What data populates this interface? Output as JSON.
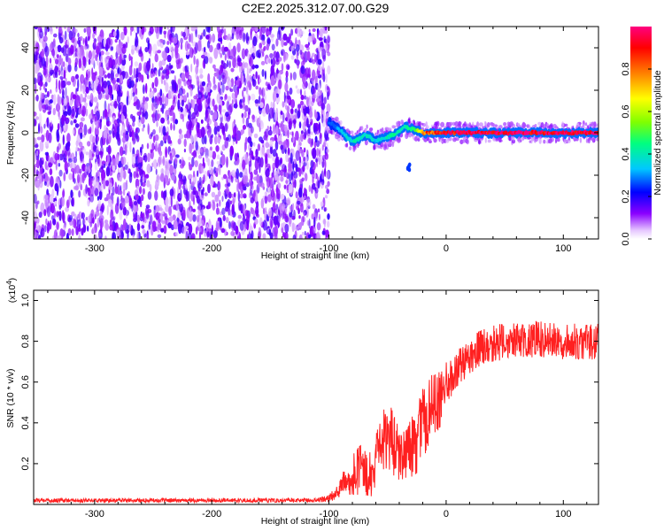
{
  "title": "C2E2.2025.312.07.00.G29",
  "colors": {
    "snr_line": "#ff2020",
    "spectral_low": "#7a00ff",
    "spectral_high": "#ff0000"
  },
  "chart_data": [
    {
      "type": "heatmap",
      "name": "spectrogram",
      "xlabel": "Height of straight line (km)",
      "ylabel": "Frequency (Hz)",
      "xlim": [
        -352,
        130
      ],
      "ylim": [
        -50,
        50
      ],
      "x_ticks": [
        -300,
        -200,
        -100,
        0,
        100
      ],
      "x_tick_labels": [
        "-300",
        "-200",
        "-100",
        "0",
        "100"
      ],
      "y_ticks": [
        -40,
        -20,
        0,
        20,
        40
      ],
      "y_tick_labels": [
        "-40",
        "-20",
        "0",
        "20",
        "40"
      ],
      "colorbar": {
        "label": "Normalized spectral amplitude",
        "range": [
          0,
          1
        ],
        "ticks": [
          0.0,
          0.2,
          0.4,
          0.6,
          0.8
        ],
        "tick_labels": [
          "0.0",
          "0.2",
          "0.4",
          "0.6",
          "0.8"
        ]
      },
      "regions": [
        {
          "description": "noise",
          "x_range": [
            -352,
            -100
          ],
          "freq_range": [
            -50,
            50
          ],
          "amplitude": 0.12
        },
        {
          "description": "carrier",
          "x_range": [
            -100,
            130
          ],
          "amplitude_peak": 1.0
        }
      ],
      "carrier_track": {
        "x": [
          -100,
          -95,
          -90,
          -85,
          -80,
          -75,
          -70,
          -65,
          -60,
          -55,
          -50,
          -45,
          -40,
          -35,
          -30,
          -25,
          -20,
          -10,
          0,
          20,
          60,
          100,
          130
        ],
        "freq": [
          5,
          3,
          1,
          -2,
          -4,
          -3,
          -1,
          -2,
          -4,
          -3,
          -2,
          -1,
          1,
          3,
          2,
          1,
          0,
          0,
          0,
          0,
          0,
          0,
          0
        ],
        "amplitude": [
          0.3,
          0.3,
          0.35,
          0.4,
          0.4,
          0.45,
          0.4,
          0.4,
          0.35,
          0.4,
          0.4,
          0.45,
          0.45,
          0.4,
          0.5,
          0.6,
          0.85,
          0.9,
          0.95,
          1.0,
          1.0,
          1.0,
          1.0
        ]
      },
      "secondary_blob": {
        "x": -32,
        "freq": -16,
        "amplitude": 0.25
      }
    },
    {
      "type": "line",
      "name": "snr",
      "xlabel": "Height of straight line (km)",
      "ylabel": "SNR (10 * v/v)",
      "y_scale_label": "(x10",
      "y_scale_exponent": "4",
      "y_scale_close": ")",
      "xlim": [
        -352,
        130
      ],
      "ylim": [
        0,
        1.05
      ],
      "x_ticks": [
        -300,
        -200,
        -100,
        0,
        100
      ],
      "x_tick_labels": [
        "-300",
        "-200",
        "-100",
        "0",
        "100"
      ],
      "y_ticks": [
        0.2,
        0.4,
        0.6,
        0.8,
        1.0
      ],
      "y_tick_labels": [
        "0.2",
        "0.4",
        "0.6",
        "0.8",
        "1.0"
      ],
      "series": [
        {
          "name": "SNR",
          "x": [
            -352,
            -300,
            -200,
            -110,
            -100,
            -95,
            -90,
            -85,
            -80,
            -75,
            -70,
            -65,
            -60,
            -55,
            -50,
            -45,
            -40,
            -35,
            -30,
            -25,
            -20,
            -15,
            -10,
            -5,
            0,
            5,
            10,
            15,
            20,
            25,
            30,
            40,
            50,
            60,
            70,
            80,
            90,
            100,
            110,
            120,
            130
          ],
          "y": [
            0.02,
            0.02,
            0.02,
            0.02,
            0.03,
            0.05,
            0.08,
            0.12,
            0.14,
            0.16,
            0.18,
            0.15,
            0.2,
            0.28,
            0.35,
            0.3,
            0.25,
            0.22,
            0.28,
            0.32,
            0.4,
            0.45,
            0.48,
            0.52,
            0.58,
            0.63,
            0.66,
            0.7,
            0.73,
            0.75,
            0.77,
            0.79,
            0.8,
            0.8,
            0.81,
            0.81,
            0.8,
            0.8,
            0.8,
            0.8,
            0.8
          ],
          "noise_amplitude": [
            0.01,
            0.01,
            0.01,
            0.01,
            0.02,
            0.03,
            0.05,
            0.08,
            0.1,
            0.12,
            0.13,
            0.12,
            0.14,
            0.16,
            0.18,
            0.16,
            0.14,
            0.13,
            0.15,
            0.17,
            0.18,
            0.18,
            0.16,
            0.14,
            0.12,
            0.1,
            0.1,
            0.09,
            0.09,
            0.09,
            0.09,
            0.09,
            0.09,
            0.09,
            0.09,
            0.09,
            0.09,
            0.09,
            0.09,
            0.09,
            0.09
          ]
        }
      ]
    }
  ]
}
